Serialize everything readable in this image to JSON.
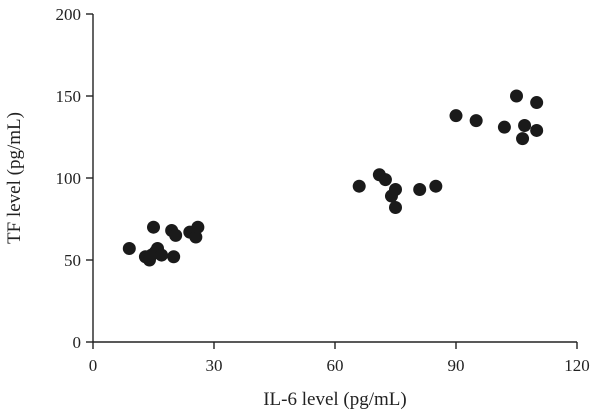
{
  "chart_data": {
    "type": "scatter",
    "title": "",
    "xlabel": "IL-6 level (pg/mL)",
    "ylabel": "TF level (pg/mL)",
    "xlim": [
      0,
      120
    ],
    "ylim": [
      0,
      200
    ],
    "x_ticks": [
      "0",
      "30",
      "60",
      "90",
      "120"
    ],
    "y_ticks": [
      "0",
      "50",
      "100",
      "150",
      "200"
    ],
    "grid": false,
    "legend": "none",
    "point_color": "#1a1a1a",
    "points": [
      {
        "x": 9,
        "y": 57
      },
      {
        "x": 13,
        "y": 52
      },
      {
        "x": 14,
        "y": 50
      },
      {
        "x": 14.5,
        "y": 53
      },
      {
        "x": 15,
        "y": 70
      },
      {
        "x": 15.5,
        "y": 55
      },
      {
        "x": 16,
        "y": 57
      },
      {
        "x": 17,
        "y": 53
      },
      {
        "x": 19.5,
        "y": 68
      },
      {
        "x": 20,
        "y": 52
      },
      {
        "x": 20.5,
        "y": 65
      },
      {
        "x": 24,
        "y": 67
      },
      {
        "x": 25.5,
        "y": 64
      },
      {
        "x": 26,
        "y": 70
      },
      {
        "x": 66,
        "y": 95
      },
      {
        "x": 71,
        "y": 102
      },
      {
        "x": 72.5,
        "y": 99
      },
      {
        "x": 74,
        "y": 89
      },
      {
        "x": 75,
        "y": 93
      },
      {
        "x": 75,
        "y": 82
      },
      {
        "x": 81,
        "y": 93
      },
      {
        "x": 85,
        "y": 95
      },
      {
        "x": 90,
        "y": 138
      },
      {
        "x": 95,
        "y": 135
      },
      {
        "x": 102,
        "y": 131
      },
      {
        "x": 105,
        "y": 150
      },
      {
        "x": 106.5,
        "y": 124
      },
      {
        "x": 107,
        "y": 132
      },
      {
        "x": 110,
        "y": 146
      },
      {
        "x": 110,
        "y": 129
      }
    ]
  }
}
